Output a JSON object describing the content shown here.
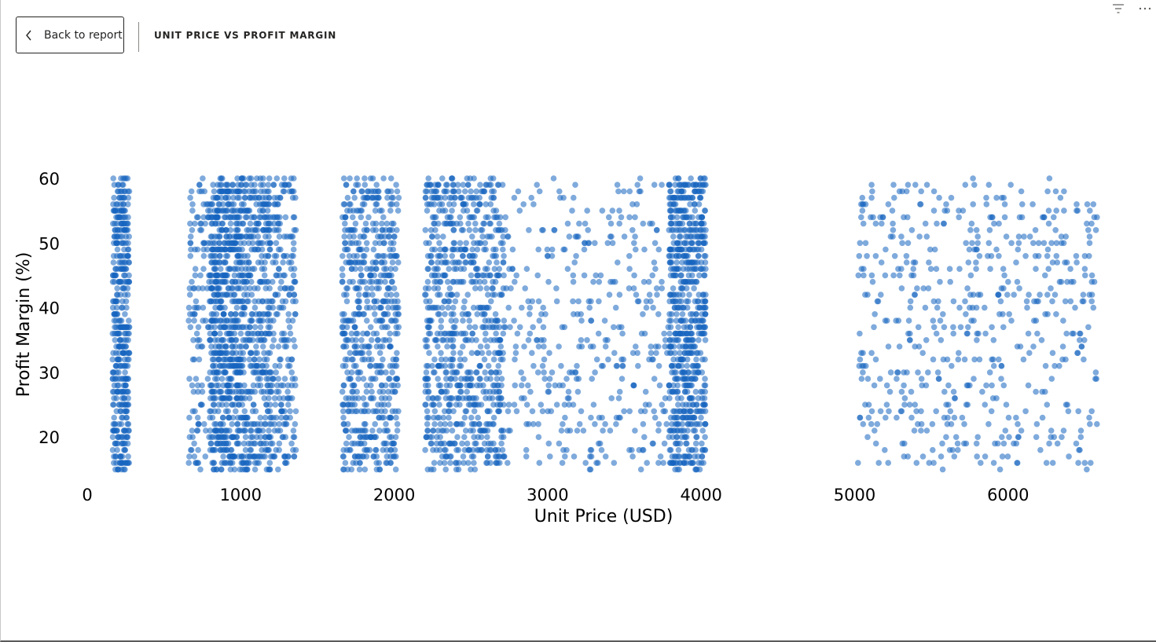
{
  "header": {
    "back_label": "Back to report",
    "visual_title": "UNIT PRICE VS PROFIT MARGIN"
  },
  "toolbar": {
    "icons": [
      "filter-icon",
      "more-options-icon"
    ]
  },
  "colors": {
    "point": "#1565c0",
    "text": "#252423"
  },
  "chart_data": {
    "type": "scatter",
    "title": "",
    "xlabel": "Unit Price (USD)",
    "ylabel": "Profit Margin (%)",
    "xlim": [
      0,
      6600
    ],
    "ylim": [
      15,
      60
    ],
    "xticks": [
      0,
      1000,
      2000,
      3000,
      4000,
      5000,
      6000
    ],
    "yticks": [
      20,
      30,
      40,
      50,
      60
    ],
    "grid": false,
    "legend": "none",
    "point_color": "#1565c0",
    "point_opacity": 0.55,
    "clusters": [
      {
        "x_range": [
          165,
          275
        ],
        "y_range": [
          15,
          60
        ],
        "points": 420
      },
      {
        "x_range": [
          660,
          1000
        ],
        "y_range": [
          15,
          60
        ],
        "points": 340
      },
      {
        "x_range": [
          800,
          1200
        ],
        "y_range": [
          15,
          60
        ],
        "points": 900
      },
      {
        "x_range": [
          1200,
          1360
        ],
        "y_range": [
          15,
          60
        ],
        "points": 220
      },
      {
        "x_range": [
          1660,
          2030
        ],
        "y_range": [
          15,
          60
        ],
        "points": 620
      },
      {
        "x_range": [
          2200,
          2720
        ],
        "y_range": [
          15,
          60
        ],
        "points": 820
      },
      {
        "x_range": [
          2720,
          3790
        ],
        "y_range": [
          15,
          60
        ],
        "points": 380
      },
      {
        "x_range": [
          3790,
          4030
        ],
        "y_range": [
          15,
          60
        ],
        "points": 700
      },
      {
        "x_range": [
          5020,
          6580
        ],
        "y_range": [
          15,
          60
        ],
        "points": 560
      }
    ]
  }
}
